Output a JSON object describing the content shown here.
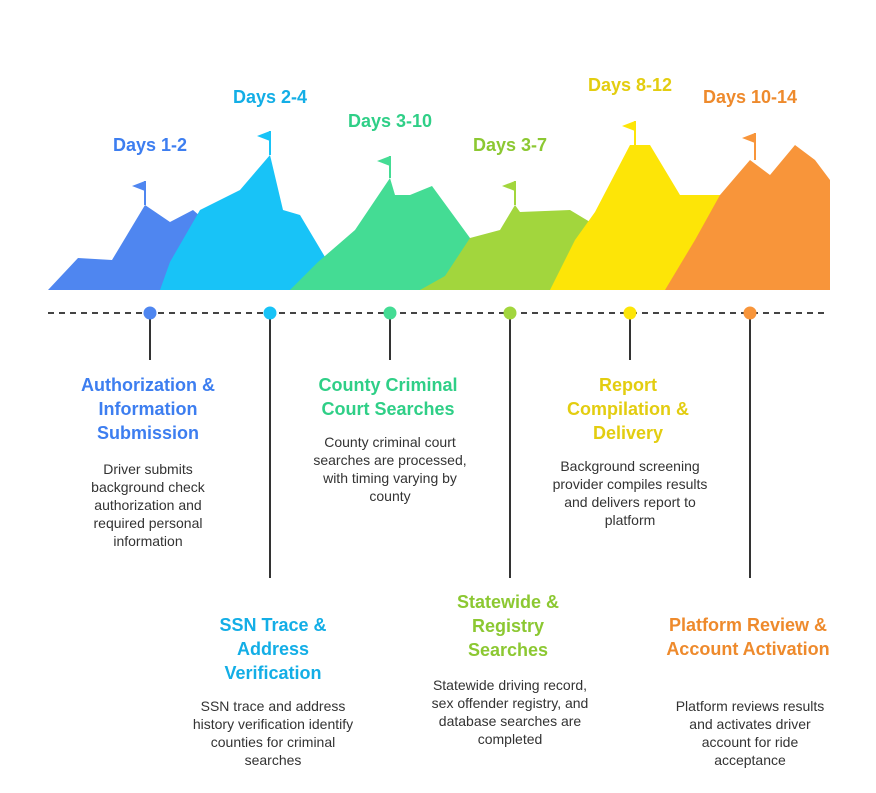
{
  "steps": [
    {
      "days": "Days 1-2",
      "title": "Authorization & Information Submission",
      "description": "Driver submits background check authorization and required personal information",
      "color": "#4f86f0",
      "text_color": "#3d7ef0"
    },
    {
      "days": "Days 2-4",
      "title": "SSN Trace & Address Verification",
      "description": "SSN trace and address history verification identify counties for criminal searches",
      "color": "#18c3f7",
      "text_color": "#13aee6"
    },
    {
      "days": "Days 3-10",
      "title": "County Criminal Court Searches",
      "description": "County criminal court searches are processed, with timing varying by county",
      "color": "#44dc94",
      "text_color": "#2fcf87"
    },
    {
      "days": "Days 3-7",
      "title": "Statewide & Registry Searches",
      "description": "Statewide driving record, sex offender registry, and database searches are completed",
      "color": "#a2d63d",
      "text_color": "#8cc832"
    },
    {
      "days": "Days 8-12",
      "title": "Report Compilation & Delivery",
      "description": "Background screening provider compiles results and delivers report to platform",
      "color": "#fde507",
      "text_color": "#e3cd10"
    },
    {
      "days": "Days 10-14",
      "title": "Platform Review & Account Activation",
      "description": "Platform reviews results and activates driver account for ride acceptance",
      "color": "#f8953a",
      "text_color": "#ee8a2c"
    }
  ],
  "timeline_color": "#444444"
}
